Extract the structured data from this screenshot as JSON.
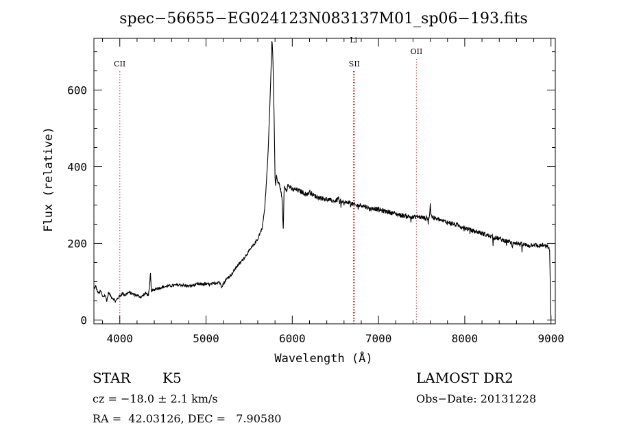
{
  "chart_data": {
    "type": "line",
    "title": "spec−56655−EG024123N083137M01_sp06−193.fits",
    "xlabel": "Wavelength (Å)",
    "ylabel": "Flux (relative)",
    "xlim": [
      3700,
      9050
    ],
    "ylim": [
      -10,
      735
    ],
    "x_ticks": [
      4000,
      5000,
      6000,
      7000,
      8000,
      9000
    ],
    "y_ticks": [
      0,
      200,
      400,
      600
    ],
    "grid": false,
    "series": [
      {
        "x": [
          3700,
          3720,
          3750,
          3780,
          3800,
          3830,
          3850,
          3870,
          3900,
          3930,
          3950,
          3980,
          4000,
          4030,
          4060,
          4100,
          4150,
          4200,
          4250,
          4300,
          4330,
          4345,
          4355,
          4365,
          4380,
          4420,
          4480,
          4550,
          4620,
          4700,
          4800,
          4900,
          5000,
          5050,
          5100,
          5150,
          5180,
          5200,
          5250,
          5300,
          5350,
          5400,
          5450,
          5500,
          5550,
          5600,
          5650,
          5680,
          5700,
          5720,
          5740,
          5755,
          5765,
          5775,
          5782,
          5790,
          5800,
          5808,
          5815,
          5830,
          5850,
          5865,
          5880,
          5890,
          5895,
          5900,
          5905,
          5910,
          5920,
          5935,
          5950,
          5980,
          6000,
          6050,
          6100,
          6150,
          6180,
          6200,
          6250,
          6300,
          6350,
          6400,
          6450,
          6500,
          6540,
          6550,
          6560,
          6600,
          6650,
          6700,
          6750,
          6800,
          6850,
          6900,
          6950,
          7000,
          7050,
          7100,
          7150,
          7200,
          7250,
          7300,
          7350,
          7400,
          7450,
          7500,
          7550,
          7590,
          7600,
          7610,
          7650,
          7700,
          7750,
          7800,
          7850,
          7900,
          7950,
          8000,
          8050,
          8100,
          8150,
          8200,
          8250,
          8300,
          8350,
          8400,
          8450,
          8500,
          8540,
          8550,
          8560,
          8600,
          8650,
          8700,
          8750,
          8800,
          8850,
          8900,
          8950,
          8970,
          8985,
          8995,
          9000
        ],
        "y": [
          80,
          88,
          70,
          75,
          60,
          65,
          50,
          72,
          60,
          55,
          48,
          58,
          62,
          70,
          65,
          72,
          68,
          64,
          60,
          70,
          65,
          82,
          125,
          78,
          76,
          82,
          85,
          88,
          90,
          92,
          88,
          93,
          94,
          92,
          96,
          100,
          88,
          95,
          110,
          120,
          138,
          150,
          165,
          180,
          195,
          212,
          240,
          290,
          360,
          440,
          560,
          660,
          735,
          690,
          610,
          520,
          370,
          350,
          380,
          360,
          355,
          340,
          320,
          270,
          225,
          280,
          345,
          350,
          345,
          340,
          352,
          345,
          340,
          340,
          335,
          330,
          328,
          335,
          325,
          320,
          318,
          315,
          312,
          310,
          318,
          300,
          312,
          305,
          308,
          302,
          298,
          300,
          296,
          290,
          292,
          288,
          285,
          283,
          280,
          277,
          274,
          272,
          270,
          268,
          270,
          268,
          265,
          268,
          305,
          272,
          265,
          262,
          258,
          255,
          252,
          248,
          245,
          240,
          236,
          232,
          230,
          226,
          222,
          218,
          215,
          212,
          208,
          206,
          202,
          185,
          205,
          200,
          198,
          196,
          194,
          198,
          192,
          196,
          190,
          192,
          175,
          50,
          0
        ]
      }
    ],
    "annotations": [
      {
        "label": "CII",
        "x": 4000
      },
      {
        "label": "SII",
        "x": 6720
      },
      {
        "label": "Li",
        "x": 6710
      },
      {
        "label": "OII",
        "x": 7440
      }
    ]
  },
  "footer": {
    "type_label": "STAR",
    "subclass": "K5",
    "survey": "LAMOST DR2",
    "cz_line": "cz = −18.0 ± 2.1 km/s",
    "obs_date": "Obs−Date: 20131228",
    "radec": "RA =  42.03126, DEC =   7.90580"
  }
}
